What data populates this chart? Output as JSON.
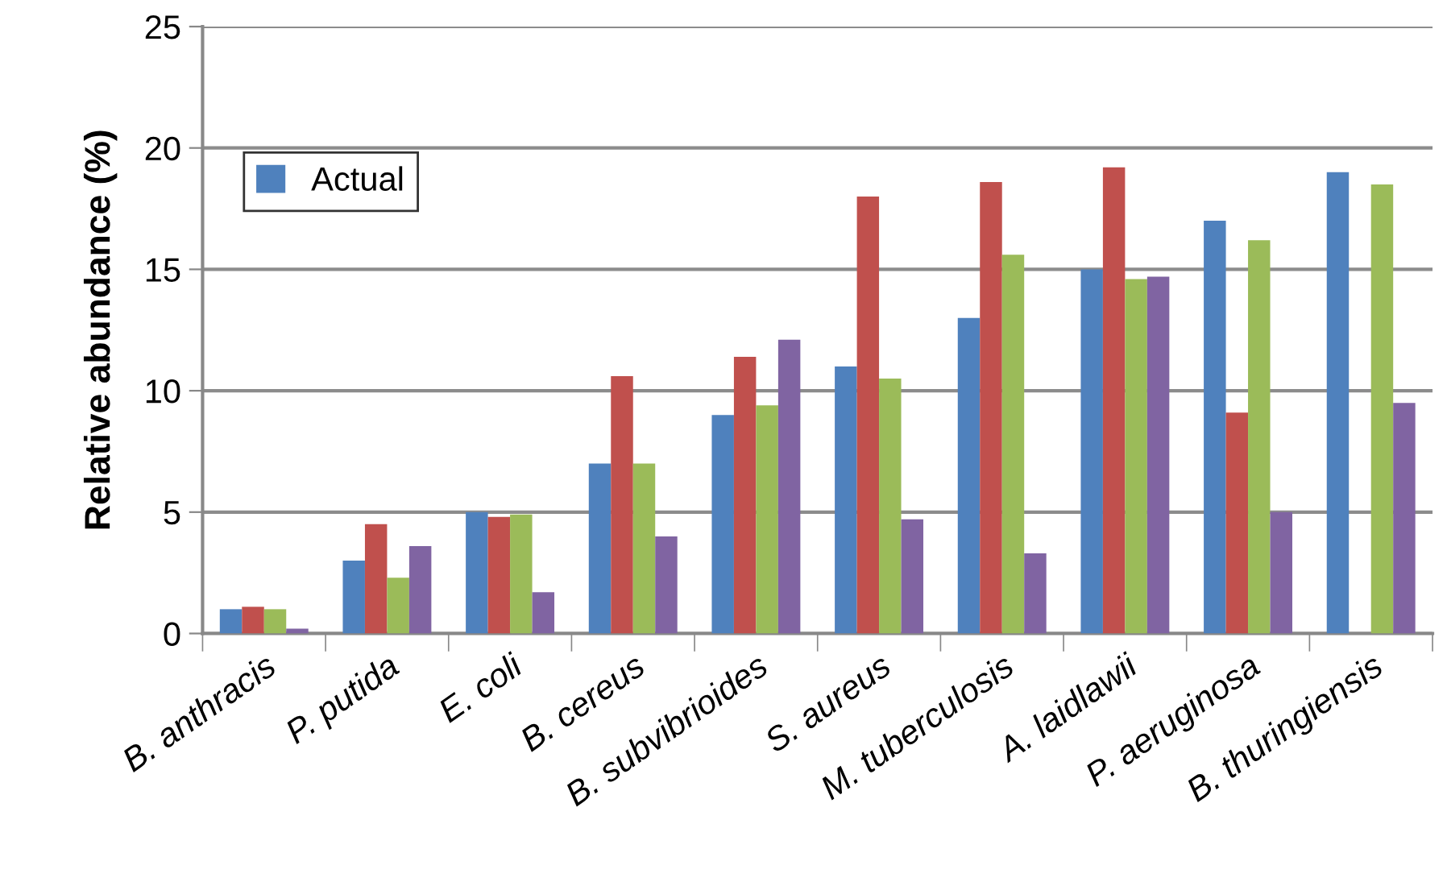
{
  "chart_data": {
    "type": "bar",
    "ylabel": "Relative abundance (%)",
    "categories": [
      "B. anthracis",
      "P. putida",
      "E. coli",
      "B. cereus",
      "B. subvibrioides",
      "S. aureus",
      "M. tuberculosis",
      "A. laidlawii",
      "P. aeruginosa",
      "B. thuringiensis"
    ],
    "series": [
      {
        "name": "Actual",
        "color": "#4f81bd",
        "values": [
          1,
          3,
          5,
          7,
          9,
          11,
          13,
          15,
          17,
          19
        ]
      },
      {
        "color": "#c0504d",
        "values": [
          1.1,
          4.5,
          4.8,
          10.6,
          11.4,
          18,
          18.6,
          19.2,
          9.1,
          0
        ]
      },
      {
        "color": "#9bbb59",
        "values": [
          1,
          2.3,
          4.9,
          7,
          9.4,
          10.5,
          15.6,
          14.6,
          16.2,
          18.5
        ]
      },
      {
        "color": "#8064a2",
        "values": [
          0.2,
          3.6,
          1.7,
          4,
          12.1,
          4.7,
          3.3,
          14.7,
          5,
          9.5
        ]
      }
    ],
    "ylim": [
      0,
      25
    ],
    "yticks": [
      0,
      5,
      10,
      15,
      20,
      25
    ],
    "grid": "y",
    "legend": "top left"
  }
}
